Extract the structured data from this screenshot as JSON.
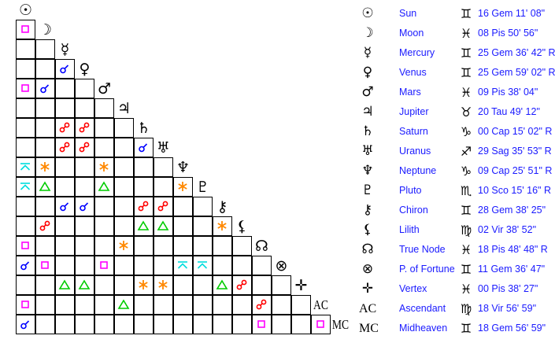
{
  "colors": {
    "square": "#ff00ff",
    "conjunction": "#0000ff",
    "opposition": "#ff0000",
    "sextile": "#ff8800",
    "trine": "#00cc00",
    "quincunx": "#00dddd",
    "text": "#1a1aff"
  },
  "bodies": [
    {
      "icon": "sun-icon",
      "glyph": "☉",
      "name": "Sun",
      "sign_icon": "gemini-icon",
      "sign": "♊",
      "position": "16 Gem 11' 08\""
    },
    {
      "icon": "moon-icon",
      "glyph": "☽",
      "name": "Moon",
      "sign_icon": "pisces-icon",
      "sign": "♓",
      "position": "08 Pis 50' 56\""
    },
    {
      "icon": "mercury-icon",
      "glyph": "☿",
      "name": "Mercury",
      "sign_icon": "gemini-icon",
      "sign": "♊",
      "position": "25 Gem 36' 42\" R"
    },
    {
      "icon": "venus-icon",
      "glyph": "♀",
      "name": "Venus",
      "sign_icon": "gemini-icon",
      "sign": "♊",
      "position": "25 Gem 59' 02\" R"
    },
    {
      "icon": "mars-icon",
      "glyph": "♂",
      "name": "Mars",
      "sign_icon": "pisces-icon",
      "sign": "♓",
      "position": "09 Pis 38' 04\""
    },
    {
      "icon": "jupiter-icon",
      "glyph": "♃",
      "name": "Jupiter",
      "sign_icon": "taurus-icon",
      "sign": "♉",
      "position": "20 Tau 49' 12\""
    },
    {
      "icon": "saturn-icon",
      "glyph": "♄",
      "name": "Saturn",
      "sign_icon": "capricorn-icon",
      "sign": "♑",
      "position": "00 Cap 15' 02\" R"
    },
    {
      "icon": "uranus-icon",
      "glyph": "♅",
      "name": "Uranus",
      "sign_icon": "sagittarius-icon",
      "sign": "♐",
      "position": "29 Sag 35' 53\" R"
    },
    {
      "icon": "neptune-icon",
      "glyph": "♆",
      "name": "Neptune",
      "sign_icon": "capricorn-icon",
      "sign": "♑",
      "position": "09 Cap 25' 51\" R"
    },
    {
      "icon": "pluto-icon",
      "glyph": "♇",
      "name": "Pluto",
      "sign_icon": "scorpio-icon",
      "sign": "♏",
      "position": "10 Sco 15' 16\" R"
    },
    {
      "icon": "chiron-icon",
      "glyph": "⚷",
      "name": "Chiron",
      "sign_icon": "gemini-icon",
      "sign": "♊",
      "position": "28 Gem 38' 25\""
    },
    {
      "icon": "lilith-icon",
      "glyph": "⚸",
      "name": "Lilith",
      "sign_icon": "virgo-icon",
      "sign": "♍",
      "position": "02 Vir 38' 52\""
    },
    {
      "icon": "north-node-icon",
      "glyph": "☊",
      "name": "True Node",
      "sign_icon": "pisces-icon",
      "sign": "♓",
      "position": "18 Pis 48' 48\" R"
    },
    {
      "icon": "part-of-fortune-icon",
      "glyph": "⊗",
      "name": "P. of Fortune",
      "sign_icon": "gemini-icon",
      "sign": "♊",
      "position": "11 Gem 36' 47\""
    },
    {
      "icon": "vertex-icon",
      "glyph": "✛",
      "name": "Vertex",
      "sign_icon": "pisces-icon",
      "sign": "♓",
      "position": "00 Pis 38' 27\""
    },
    {
      "icon": "ascendant-icon",
      "glyph": "AC",
      "name": "Ascendant",
      "sign_icon": "virgo-icon",
      "sign": "♍",
      "position": "18 Vir 56' 59\""
    },
    {
      "icon": "midheaven-icon",
      "glyph": "MC",
      "name": "Midheaven",
      "sign_icon": "gemini-icon",
      "sign": "♊",
      "position": "18 Gem 56' 59\""
    }
  ],
  "aspect_grid": [
    [],
    [
      "square"
    ],
    [
      "",
      ""
    ],
    [
      "",
      "",
      "conjunction"
    ],
    [
      "square",
      "conjunction",
      "",
      ""
    ],
    [
      "",
      "",
      "",
      "",
      ""
    ],
    [
      "",
      "",
      "opposition",
      "opposition",
      "",
      ""
    ],
    [
      "",
      "",
      "opposition",
      "opposition",
      "",
      "",
      "conjunction"
    ],
    [
      "quincunx",
      "sextile",
      "",
      "",
      "sextile",
      "",
      "",
      ""
    ],
    [
      "quincunx",
      "trine",
      "",
      "",
      "trine",
      "",
      "",
      "",
      "sextile"
    ],
    [
      "",
      "",
      "conjunction",
      "conjunction",
      "",
      "",
      "opposition",
      "opposition",
      "",
      ""
    ],
    [
      "",
      "opposition",
      "",
      "",
      "",
      "",
      "trine",
      "trine",
      "",
      "",
      "sextile"
    ],
    [
      "square",
      "",
      "",
      "",
      "",
      "sextile",
      "",
      "",
      "",
      "",
      "",
      ""
    ],
    [
      "conjunction",
      "square",
      "",
      "",
      "square",
      "",
      "",
      "",
      "quincunx",
      "quincunx",
      "",
      "",
      ""
    ],
    [
      "",
      "",
      "trine",
      "trine",
      "",
      "",
      "sextile",
      "sextile",
      "",
      "",
      "trine",
      "opposition",
      "",
      ""
    ],
    [
      "square",
      "",
      "",
      "",
      "",
      "trine",
      "",
      "",
      "",
      "",
      "",
      "",
      "opposition",
      "",
      ""
    ],
    [
      "conjunction",
      "",
      "",
      "",
      "",
      "",
      "",
      "",
      "",
      "",
      "",
      "",
      "square",
      "",
      "",
      "square"
    ]
  ]
}
